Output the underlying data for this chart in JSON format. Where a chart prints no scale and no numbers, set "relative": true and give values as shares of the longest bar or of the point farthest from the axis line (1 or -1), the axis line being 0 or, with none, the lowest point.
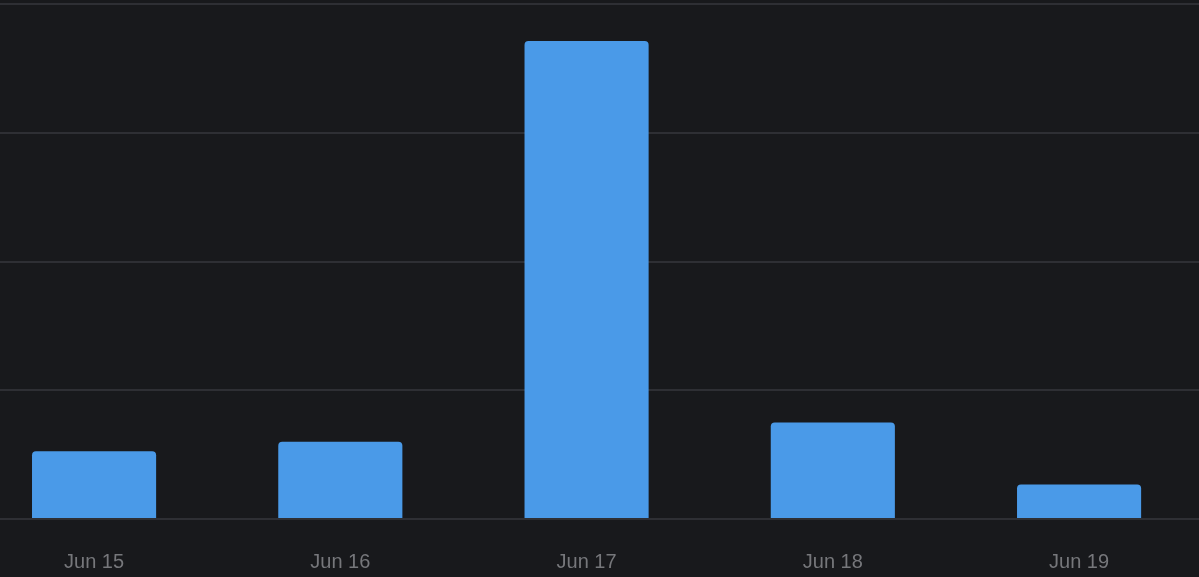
{
  "chart_data": {
    "type": "bar",
    "relative": true,
    "categories": [
      "Jun 15",
      "Jun 16",
      "Jun 17",
      "Jun 18",
      "Jun 19"
    ],
    "values": [
      0.14,
      0.16,
      1,
      0.2,
      0.07
    ],
    "color": "#4a9ae8",
    "grid": "y",
    "tick_labels": "x"
  }
}
